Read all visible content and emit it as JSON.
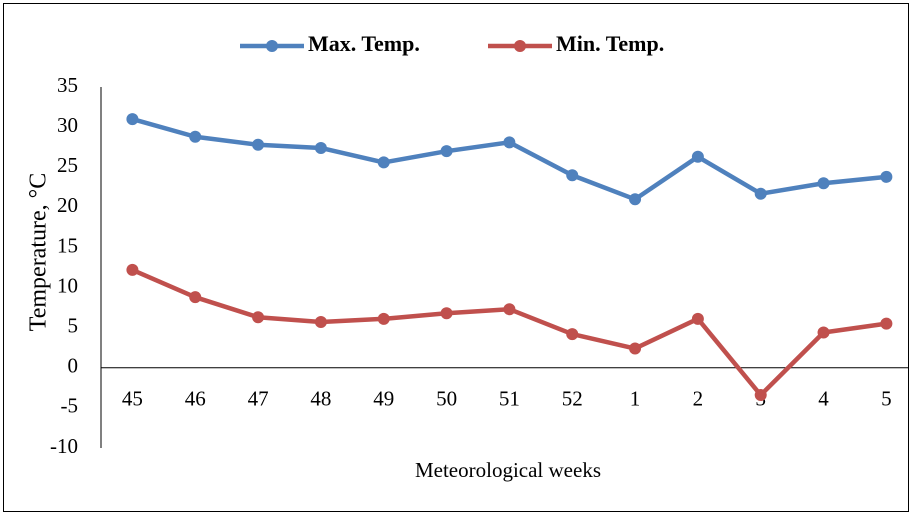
{
  "chart_data": {
    "type": "line",
    "x_label": "Meteorological weeks",
    "y_label": "Temperature, °C",
    "categories": [
      "45",
      "46",
      "47",
      "48",
      "49",
      "50",
      "51",
      "52",
      "1",
      "2",
      "3",
      "4",
      "5"
    ],
    "series": [
      {
        "name": "Max. Temp.",
        "color": "#4f81bd",
        "values": [
          31,
          28.8,
          27.8,
          27.4,
          25.6,
          27,
          28.1,
          24,
          21,
          26.3,
          21.7,
          23,
          23.8
        ]
      },
      {
        "name": "Min. Temp.",
        "color": "#c0504d",
        "values": [
          12.2,
          8.8,
          6.3,
          5.7,
          6.1,
          6.8,
          7.3,
          4.2,
          2.4,
          6.1,
          -3.4,
          4.4,
          5.5
        ]
      }
    ],
    "ylim": [
      -10,
      35
    ],
    "yticks": [
      -10,
      -5,
      0,
      5,
      10,
      15,
      20,
      25,
      30,
      35
    ],
    "grid": false,
    "legend": "top"
  }
}
